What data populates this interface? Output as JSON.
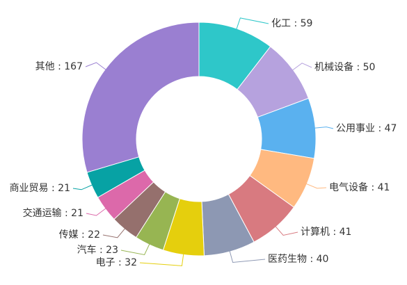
{
  "chart_data": {
    "type": "pie",
    "variant": "donut",
    "legend": "none",
    "categories": [
      "化工",
      "机械设备",
      "公用事业",
      "电气设备",
      "计算机",
      "医药生物",
      "电子",
      "汽车",
      "传媒",
      "交通运输",
      "商业贸易",
      "其他"
    ],
    "values": [
      59,
      50,
      47,
      41,
      41,
      40,
      32,
      23,
      22,
      21,
      21,
      167
    ],
    "labels": [
      "化工 : 59",
      "机械设备 : 50",
      "公用事业 : 47",
      "电气设备 : 41",
      "计算机 : 41",
      "医药生物 : 40",
      "电子 : 32",
      "汽车 : 23",
      "传媒 : 22",
      "交通运输 : 21",
      "商业贸易 : 21",
      "其他 : 167"
    ],
    "colors": [
      "#2ec7c9",
      "#b6a2de",
      "#5ab1ef",
      "#ffb980",
      "#d87a80",
      "#8d98b3",
      "#e5cf0d",
      "#97b552",
      "#95706d",
      "#dc69aa",
      "#07a2a4",
      "#9a7fd1"
    ]
  }
}
